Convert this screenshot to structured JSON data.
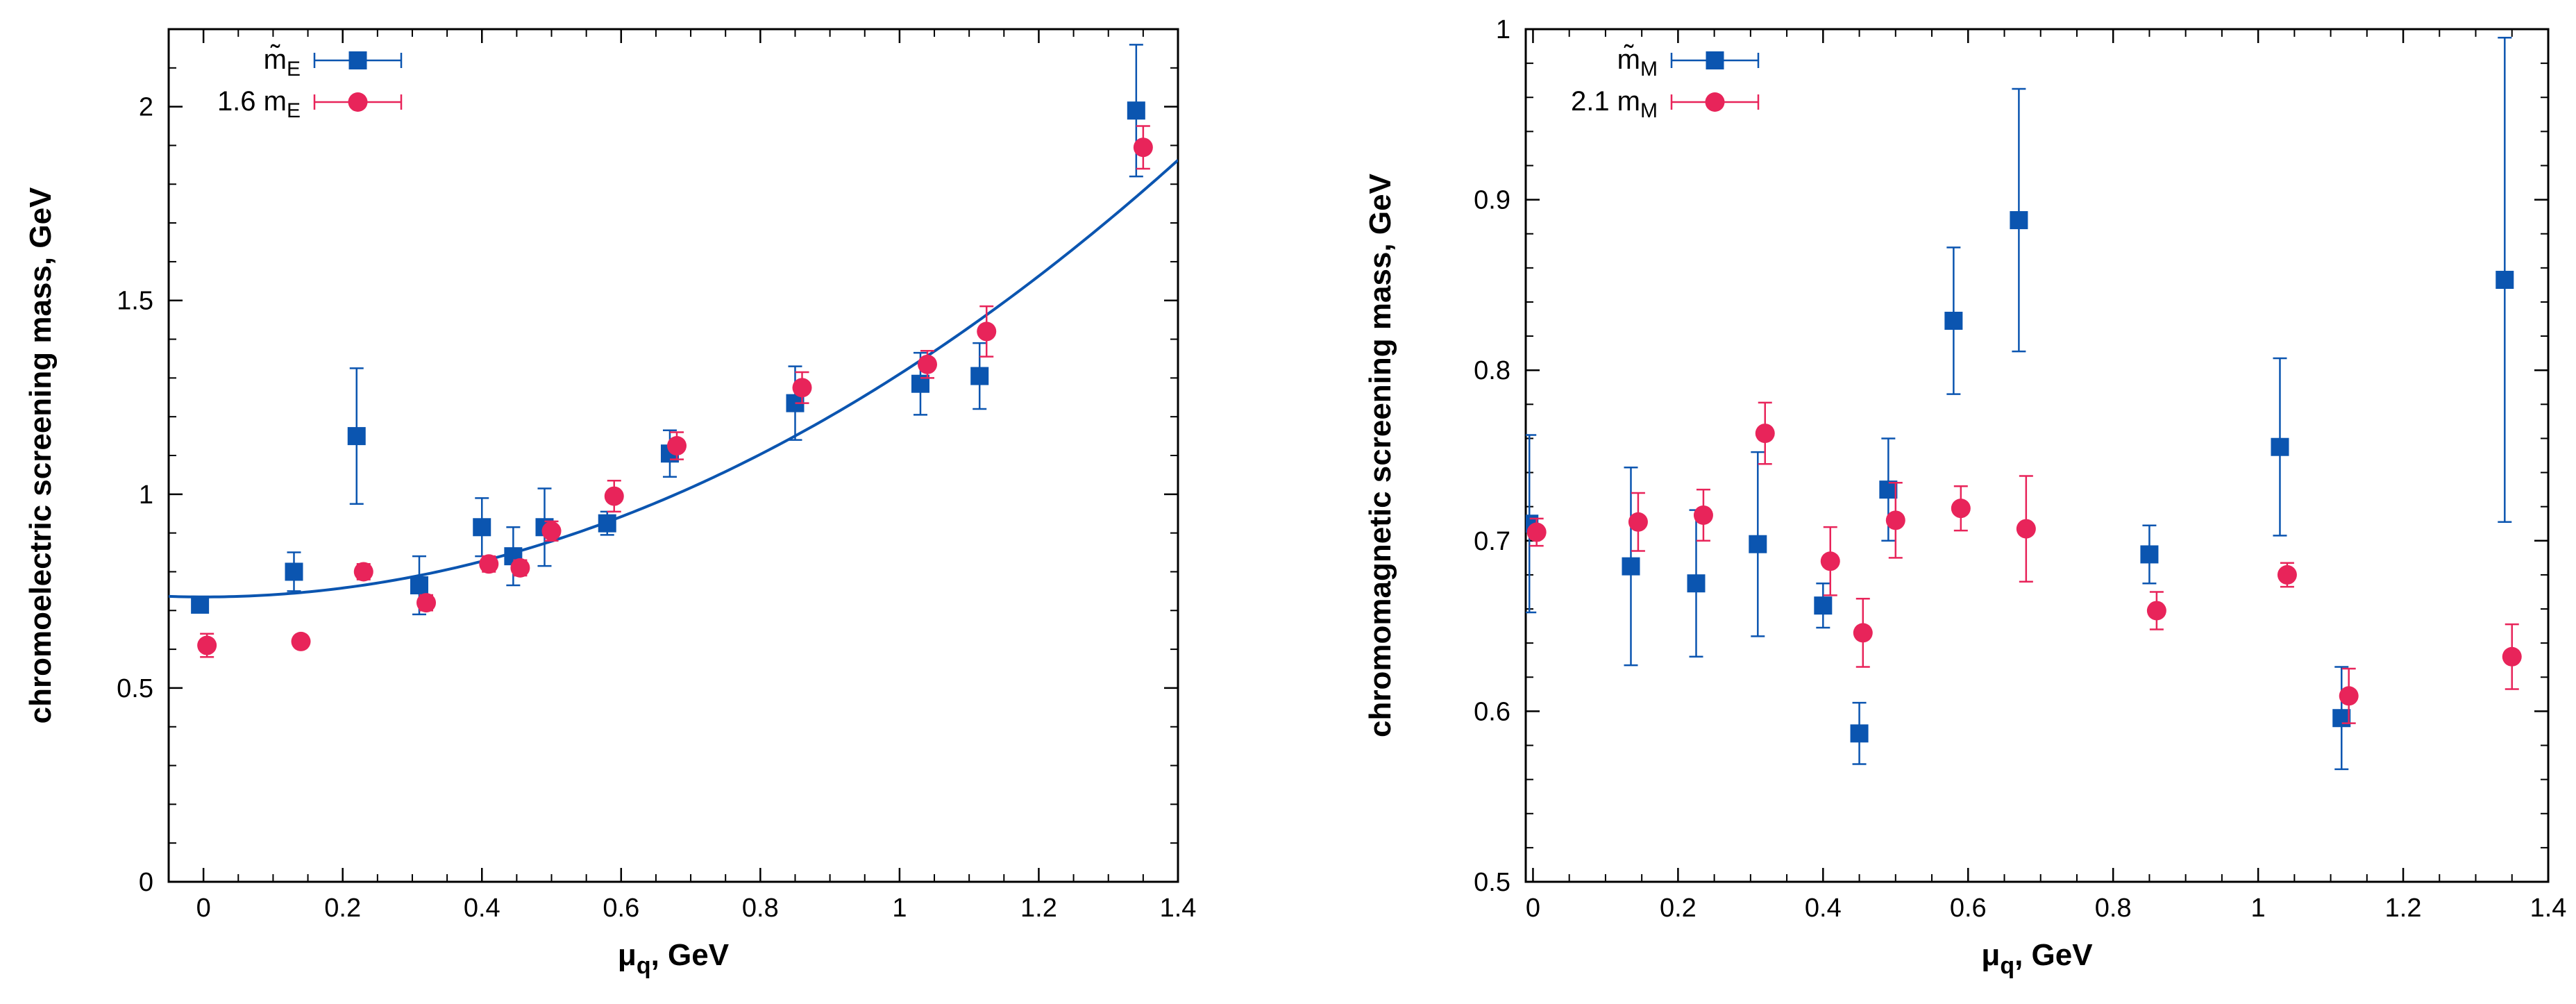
{
  "chart_data": [
    {
      "type": "scatter",
      "title": "",
      "xlabel": "μ_q, GeV",
      "xlabel_main": "μ",
      "xlabel_sub": "q",
      "xlabel_tail": ", GeV",
      "ylabel": "chromoelectric screening mass, GeV",
      "xlim": [
        -0.05,
        1.4
      ],
      "ylim": [
        0,
        2.2
      ],
      "xticks": [
        0,
        0.2,
        0.4,
        0.6,
        0.8,
        1,
        1.2,
        1.4
      ],
      "xtick_labels": [
        "0",
        "0.2",
        "0.4",
        "0.6",
        "0.8",
        "1",
        "1.2",
        "1.4"
      ],
      "yticks": [
        0,
        0.5,
        1,
        1.5,
        2
      ],
      "ytick_labels": [
        "0",
        "0.5",
        "1",
        "1.5",
        "2"
      ],
      "legend_position": "top-left",
      "series": [
        {
          "name": "m̃_E",
          "legend_main": "m̃",
          "legend_sub": "E",
          "marker": "square",
          "color": "#0b55b0",
          "points": [
            {
              "x": -0.005,
              "y": 0.715,
              "err": 0.0
            },
            {
              "x": 0.13,
              "y": 0.8,
              "err": 0.05
            },
            {
              "x": 0.22,
              "y": 1.15,
              "err": 0.175
            },
            {
              "x": 0.31,
              "y": 0.765,
              "err": 0.075
            },
            {
              "x": 0.4,
              "y": 0.915,
              "err": 0.075
            },
            {
              "x": 0.445,
              "y": 0.84,
              "err": 0.075
            },
            {
              "x": 0.49,
              "y": 0.915,
              "err": 0.1
            },
            {
              "x": 0.58,
              "y": 0.925,
              "err": 0.03
            },
            {
              "x": 0.67,
              "y": 1.105,
              "err": 0.06
            },
            {
              "x": 0.85,
              "y": 1.235,
              "err": 0.095
            },
            {
              "x": 1.03,
              "y": 1.285,
              "err": 0.08
            },
            {
              "x": 1.115,
              "y": 1.305,
              "err": 0.085
            },
            {
              "x": 1.34,
              "y": 1.99,
              "err": 0.17
            }
          ]
        },
        {
          "name": "1.6 m_E",
          "legend_main": "1.6 m",
          "legend_sub": "E",
          "marker": "circle",
          "color": "#e8245a",
          "points": [
            {
              "x": 0.005,
              "y": 0.61,
              "err": 0.03
            },
            {
              "x": 0.14,
              "y": 0.62,
              "err": 0.015
            },
            {
              "x": 0.23,
              "y": 0.8,
              "err": 0.02
            },
            {
              "x": 0.32,
              "y": 0.72,
              "err": 0.02
            },
            {
              "x": 0.41,
              "y": 0.82,
              "err": 0.02
            },
            {
              "x": 0.455,
              "y": 0.81,
              "err": 0.02
            },
            {
              "x": 0.5,
              "y": 0.905,
              "err": 0.025
            },
            {
              "x": 0.59,
              "y": 0.995,
              "err": 0.04
            },
            {
              "x": 0.68,
              "y": 1.125,
              "err": 0.035
            },
            {
              "x": 0.86,
              "y": 1.275,
              "err": 0.04
            },
            {
              "x": 1.04,
              "y": 1.335,
              "err": 0.035
            },
            {
              "x": 1.125,
              "y": 1.42,
              "err": 0.065
            },
            {
              "x": 1.35,
              "y": 1.895,
              "err": 0.055
            }
          ]
        }
      ],
      "fit_curve": {
        "type": "quadratic",
        "color": "#0b55b0",
        "a": 0.735,
        "b": 0.575
      }
    },
    {
      "type": "scatter",
      "title": "",
      "xlabel": "μ_q, GeV",
      "xlabel_main": "μ",
      "xlabel_sub": "q",
      "xlabel_tail": ", GeV",
      "ylabel": "chromomagnetic screening mass, GeV",
      "xlim": [
        -0.01,
        1.4
      ],
      "ylim": [
        0.5,
        1.0
      ],
      "xticks": [
        0,
        0.2,
        0.4,
        0.6,
        0.8,
        1,
        1.2,
        1.4
      ],
      "xtick_labels": [
        "0",
        "0.2",
        "0.4",
        "0.6",
        "0.8",
        "1",
        "1.2",
        "1.4"
      ],
      "yticks": [
        0.5,
        0.6,
        0.7,
        0.8,
        0.9,
        1.0
      ],
      "ytick_labels": [
        "0.5",
        "0.6",
        "0.7",
        "0.8",
        "0.9",
        "1"
      ],
      "legend_position": "top-left",
      "series": [
        {
          "name": "m̃_M",
          "legend_main": "m̃",
          "legend_sub": "M",
          "marker": "square",
          "color": "#0b55b0",
          "points": [
            {
              "x": -0.005,
              "y": 0.71,
              "err": 0.052
            },
            {
              "x": 0.135,
              "y": 0.685,
              "err": 0.058
            },
            {
              "x": 0.225,
              "y": 0.675,
              "err": 0.043
            },
            {
              "x": 0.31,
              "y": 0.698,
              "err": 0.054
            },
            {
              "x": 0.4,
              "y": 0.662,
              "err": 0.013
            },
            {
              "x": 0.45,
              "y": 0.587,
              "err": 0.018
            },
            {
              "x": 0.49,
              "y": 0.73,
              "err": 0.03
            },
            {
              "x": 0.58,
              "y": 0.829,
              "err": 0.043
            },
            {
              "x": 0.67,
              "y": 0.888,
              "err": 0.077
            },
            {
              "x": 0.85,
              "y": 0.692,
              "err": 0.017
            },
            {
              "x": 1.03,
              "y": 0.755,
              "err": 0.052
            },
            {
              "x": 1.115,
              "y": 0.596,
              "err": 0.03
            },
            {
              "x": 1.34,
              "y": 0.853,
              "err": 0.142
            }
          ]
        },
        {
          "name": "2.1 m_M",
          "legend_main": "2.1 m",
          "legend_sub": "M",
          "marker": "circle",
          "color": "#e8245a",
          "points": [
            {
              "x": 0.005,
              "y": 0.705,
              "err": 0.008
            },
            {
              "x": 0.145,
              "y": 0.711,
              "err": 0.017
            },
            {
              "x": 0.235,
              "y": 0.715,
              "err": 0.015
            },
            {
              "x": 0.32,
              "y": 0.763,
              "err": 0.018
            },
            {
              "x": 0.41,
              "y": 0.688,
              "err": 0.02
            },
            {
              "x": 0.455,
              "y": 0.646,
              "err": 0.02
            },
            {
              "x": 0.5,
              "y": 0.712,
              "err": 0.022
            },
            {
              "x": 0.59,
              "y": 0.719,
              "err": 0.013
            },
            {
              "x": 0.68,
              "y": 0.707,
              "err": 0.031
            },
            {
              "x": 0.86,
              "y": 0.659,
              "err": 0.011
            },
            {
              "x": 1.04,
              "y": 0.68,
              "err": 0.007
            },
            {
              "x": 1.125,
              "y": 0.609,
              "err": 0.016
            },
            {
              "x": 1.35,
              "y": 0.632,
              "err": 0.019
            }
          ]
        }
      ]
    }
  ]
}
